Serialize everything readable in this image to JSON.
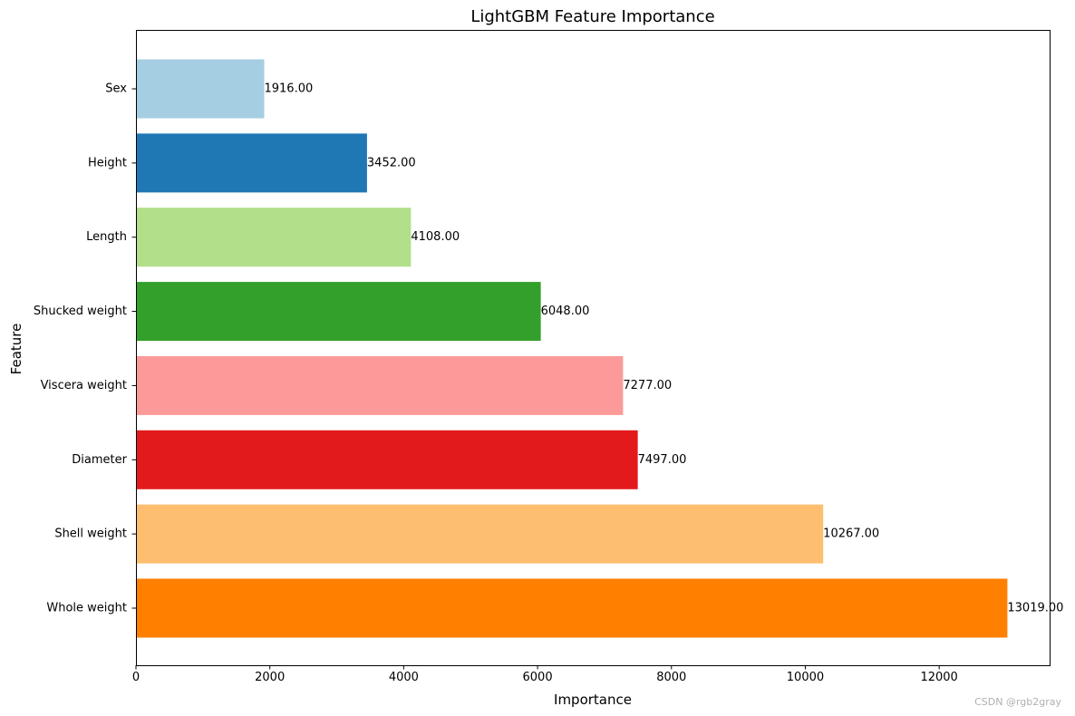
{
  "chart_data": {
    "type": "bar",
    "orientation": "horizontal",
    "title": "LightGBM Feature Importance",
    "xlabel": "Importance",
    "ylabel": "Feature",
    "xlim": [
      0,
      13650
    ],
    "xticks": [
      0,
      2000,
      4000,
      6000,
      8000,
      10000,
      12000
    ],
    "xtick_labels": [
      "0",
      "2000",
      "4000",
      "6000",
      "8000",
      "10000",
      "12000"
    ],
    "grid": false,
    "legend": "none",
    "categories": [
      "Whole weight",
      "Shell weight",
      "Diameter",
      "Viscera weight",
      "Shucked weight",
      "Length",
      "Height",
      "Sex"
    ],
    "values": [
      13019,
      10267,
      7497,
      7277,
      6048,
      4108,
      3452,
      1916
    ],
    "data_labels": [
      "13019.00",
      "10267.00",
      "7497.00",
      "7277.00",
      "6048.00",
      "4108.00",
      "3452.00",
      "1916.00"
    ],
    "colors": [
      "#ff7f00",
      "#fdbf6f",
      "#e31a1c",
      "#fb9a99",
      "#33a02c",
      "#b2df8a",
      "#1f78b4",
      "#a6cee3"
    ]
  },
  "watermark": "CSDN @rgb2gray"
}
